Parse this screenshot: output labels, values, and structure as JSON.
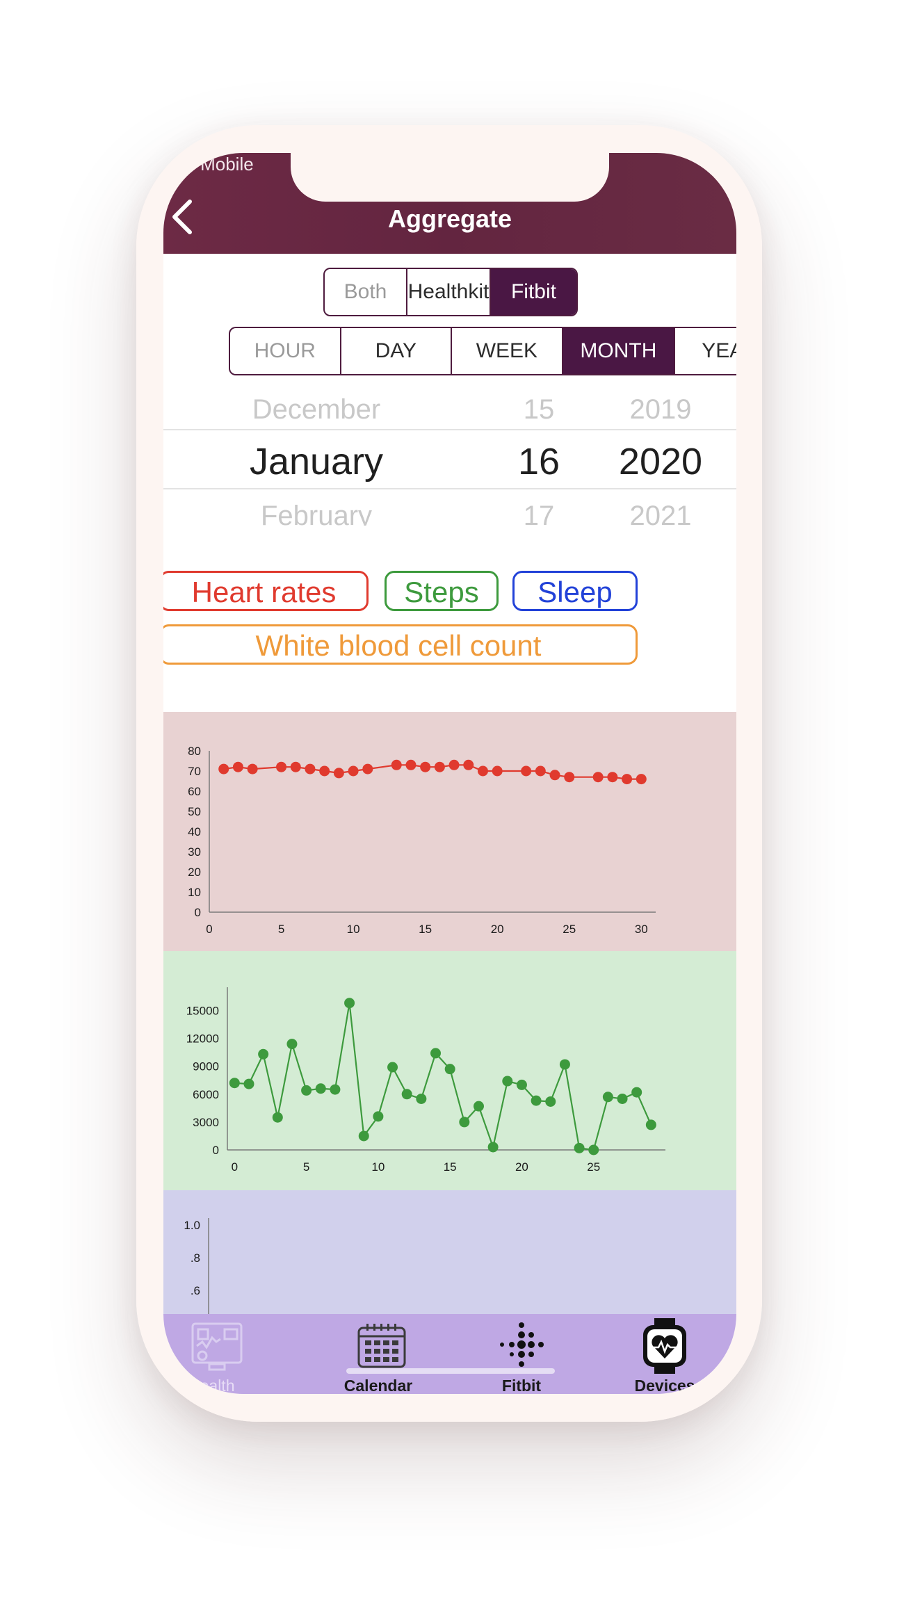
{
  "status": {
    "carrier": "T-Mobile"
  },
  "nav": {
    "title": "Aggregate"
  },
  "source_segment": {
    "options": [
      "Both",
      "Healthkit",
      "Fitbit"
    ],
    "selected": "Fitbit"
  },
  "period_segment": {
    "options": [
      "HOUR",
      "DAY",
      "WEEK",
      "MONTH",
      "YEA"
    ],
    "selected": "MONTH"
  },
  "date_picker": {
    "prev": {
      "month": "December",
      "day": "15",
      "year": "2019"
    },
    "current": {
      "month": "January",
      "day": "16",
      "year": "2020"
    },
    "next": {
      "month": "February",
      "day": "17",
      "year": "2021"
    }
  },
  "metrics": {
    "heart_rates": "Heart rates",
    "steps": "Steps",
    "sleep": "Sleep",
    "wbc": "White blood cell count"
  },
  "colors": {
    "brand": "#632540",
    "heart": "#e03a2e",
    "steps": "#3d9a3d",
    "sleep": "#2242d8",
    "wbc": "#ef9a3a",
    "heart_bg": "#e8d2d2",
    "steps_bg": "#d4ecd4",
    "sleep_bg": "#d1d0ec",
    "tabbar": "#bfa8e4"
  },
  "chart_data": [
    {
      "type": "line",
      "x": [
        1,
        2,
        3,
        5,
        6,
        7,
        8,
        9,
        10,
        11,
        13,
        14,
        15,
        16,
        17,
        18,
        19,
        20,
        22,
        23,
        24,
        25,
        27,
        28,
        29,
        30
      ],
      "y": [
        71,
        72,
        71,
        72,
        72,
        71,
        70,
        69,
        70,
        71,
        73,
        73,
        72,
        72,
        73,
        73,
        70,
        70,
        70,
        70,
        68,
        67,
        67,
        67,
        66,
        66
      ],
      "xlim": [
        0,
        31
      ],
      "ylim": [
        0,
        80
      ],
      "xticks": [
        "0",
        "5",
        "10",
        "15",
        "20",
        "25",
        "30"
      ],
      "yticks": [
        "0",
        "10",
        "20",
        "30",
        "40",
        "50",
        "60",
        "70",
        "80"
      ],
      "grid": false
    },
    {
      "type": "line",
      "x": [
        0,
        1,
        2,
        3,
        4,
        5,
        6,
        7,
        8,
        9,
        10,
        11,
        12,
        13,
        14,
        15,
        16,
        17,
        18,
        19,
        20,
        21,
        22,
        23,
        24,
        25,
        26,
        27,
        28,
        29
      ],
      "y": [
        7200,
        7100,
        10300,
        3500,
        11400,
        6400,
        6600,
        6500,
        15800,
        1500,
        3600,
        8900,
        6000,
        5500,
        10400,
        8700,
        3000,
        4700,
        300,
        7400,
        7000,
        5300,
        5200,
        9200,
        200,
        0,
        5700,
        5500,
        6200,
        2700
      ],
      "xlim": [
        -0.5,
        30
      ],
      "ylim": [
        0,
        17500
      ],
      "xticks": [
        "0",
        "5",
        "10",
        "15",
        "20",
        "25"
      ],
      "yticks": [
        "0",
        "3000",
        "6000",
        "9000",
        "12000",
        "15000"
      ],
      "grid": false
    },
    {
      "type": "line",
      "x": [],
      "y": [],
      "yticks": [
        ".6",
        ".8",
        "1.0"
      ],
      "grid": false
    }
  ],
  "tabs": [
    {
      "label": "Health",
      "icon": "health-dashboard-icon"
    },
    {
      "label": "Calendar",
      "icon": "calendar-icon"
    },
    {
      "label": "Fitbit",
      "icon": "fitbit-logo-icon"
    },
    {
      "label": "Devices",
      "icon": "smartwatch-heart-icon"
    }
  ]
}
